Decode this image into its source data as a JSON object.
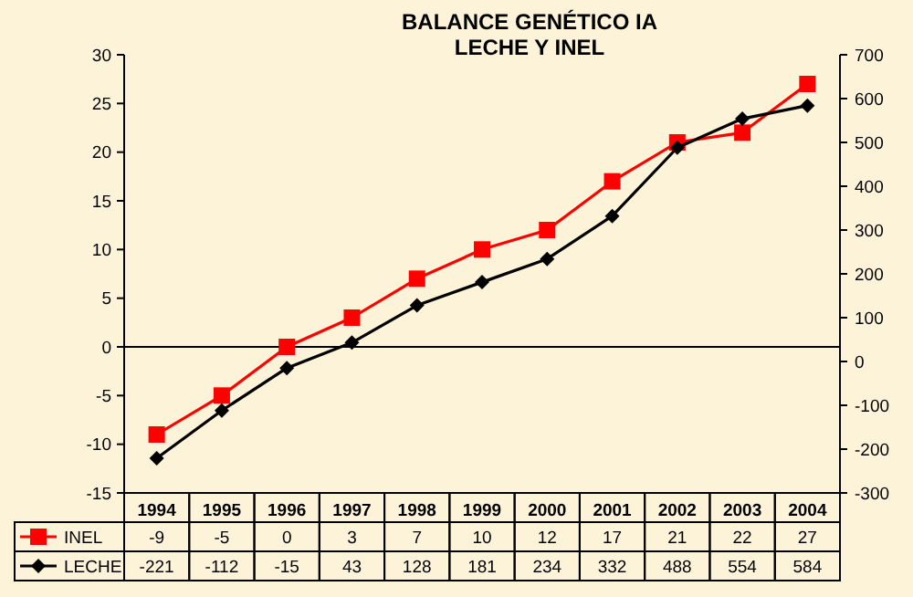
{
  "chart_data": {
    "type": "line",
    "title": "BALANCE GENÉTICO IA\nLECHE Y INEL",
    "categories": [
      "1994",
      "1995",
      "1996",
      "1997",
      "1998",
      "1999",
      "2000",
      "2001",
      "2002",
      "2003",
      "2004"
    ],
    "series": [
      {
        "name": "INEL",
        "color": "#ff0000",
        "marker": "square",
        "values": [
          -9,
          -5,
          0,
          3,
          7,
          10,
          12,
          17,
          21,
          22,
          27
        ]
      },
      {
        "name": "LECHE",
        "color": "#000000",
        "marker": "diamond",
        "axis": "y2",
        "values": [
          -221,
          -112,
          -15,
          43,
          128,
          181,
          234,
          332,
          488,
          554,
          584
        ]
      }
    ],
    "ylim": [
      -15,
      30
    ],
    "yticks": [
      -15,
      -10,
      -5,
      0,
      5,
      10,
      15,
      20,
      25,
      30
    ],
    "y2lim": [
      -300,
      700
    ],
    "y2ticks": [
      -300,
      -200,
      -100,
      0,
      100,
      200,
      300,
      400,
      500,
      600,
      700
    ],
    "data_labels": true,
    "legend": "bottom"
  }
}
